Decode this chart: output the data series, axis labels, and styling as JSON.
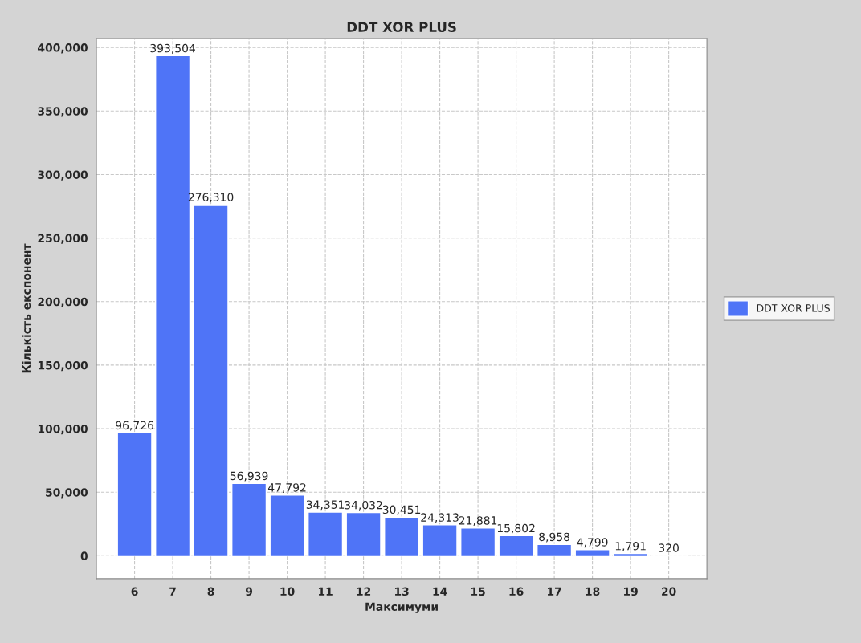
{
  "chart_data": {
    "type": "bar",
    "title": "DDT XOR PLUS",
    "xlabel": "Максимуми",
    "ylabel": "Кількість експонент",
    "categories": [
      "6",
      "7",
      "8",
      "9",
      "10",
      "11",
      "12",
      "13",
      "14",
      "15",
      "16",
      "17",
      "18",
      "19",
      "20"
    ],
    "series": [
      {
        "name": "DDT XOR PLUS",
        "color": "#4f74f7",
        "values": [
          96726,
          393504,
          276310,
          56939,
          47792,
          34351,
          34032,
          30451,
          24313,
          21881,
          15802,
          8958,
          4799,
          1791,
          320
        ],
        "value_labels": [
          "96,726",
          "393,504",
          "276,310",
          "56,939",
          "47,792",
          "34,351",
          "34,032",
          "30,451",
          "24,313",
          "21,881",
          "15,802",
          "8,958",
          "4,799",
          "1,791",
          "320"
        ]
      }
    ],
    "ylim": [
      -18000,
      407000
    ],
    "yticks": [
      {
        "value": 0,
        "label": "0"
      },
      {
        "value": 50000,
        "label": "50,000"
      },
      {
        "value": 100000,
        "label": "100,000"
      },
      {
        "value": 150000,
        "label": "150,000"
      },
      {
        "value": 200000,
        "label": "200,000"
      },
      {
        "value": 250000,
        "label": "250,000"
      },
      {
        "value": 300000,
        "label": "300,000"
      },
      {
        "value": 350000,
        "label": "350,000"
      },
      {
        "value": 400000,
        "label": "400,000"
      }
    ],
    "grid": true,
    "legend": "right"
  }
}
